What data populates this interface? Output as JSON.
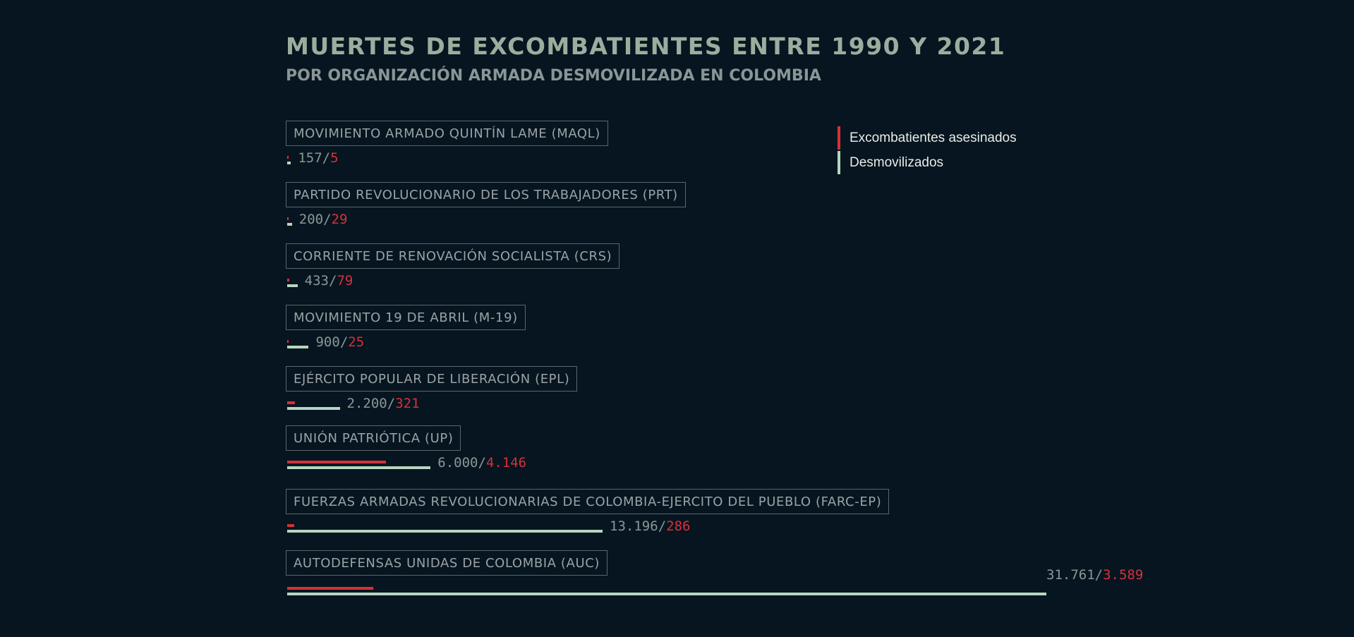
{
  "title": "MUERTES DE EXCOMBATIENTES ENTRE 1990 Y 2021",
  "subtitle": "POR ORGANIZACIÓN ARMADA DESMOVILIZADA EN COLOMBIA",
  "legend": {
    "killed_label": "Excombatientes asesinados",
    "demob_label": "Desmovilizados"
  },
  "colors": {
    "background": "#061520",
    "killed": "#d6313a",
    "demobilized": "#b5d6bf",
    "text": "#9aa3a5"
  },
  "chart_data": {
    "type": "bar",
    "title": "MUERTES DE EXCOMBATIENTES ENTRE 1990 Y 2021",
    "subtitle": "POR ORGANIZACIÓN ARMADA DESMOVILIZADA EN COLOMBIA",
    "orientation": "horizontal",
    "legend_position": "top-right",
    "grid": false,
    "xlim": [
      0,
      31761
    ],
    "categories": [
      "MOVIMIENTO ARMADO QUINTÍN LAME (MAQL)",
      "PARTIDO REVOLUCIONARIO DE LOS TRABAJADORES (PRT)",
      "CORRIENTE DE RENOVACIÓN SOCIALISTA (CRS)",
      "MOVIMIENTO 19 DE ABRIL (M-19)",
      "EJÉRCITO POPULAR DE LIBERACIÓN (EPL)",
      "UNIÓN PATRIÓTICA (UP)",
      "FUERZAS ARMADAS REVOLUCIONARIAS DE COLOMBIA-EJERCITO DEL PUEBLO (FARC-EP)",
      "AUTODEFENSAS UNIDAS DE COLOMBIA (AUC)"
    ],
    "series": [
      {
        "name": "Desmovilizados",
        "values": [
          157,
          200,
          433,
          900,
          2200,
          6000,
          13196,
          31761
        ],
        "labels": [
          "157",
          "200",
          "433",
          "900",
          "2.200",
          "6.000",
          "13.196",
          "31.761"
        ]
      },
      {
        "name": "Excombatientes asesinados",
        "values": [
          5,
          29,
          79,
          25,
          321,
          4146,
          286,
          3589
        ],
        "labels": [
          "5",
          "29",
          "79",
          "25",
          "321",
          "4.146",
          "286",
          "3.589"
        ]
      }
    ],
    "separator": "/"
  }
}
